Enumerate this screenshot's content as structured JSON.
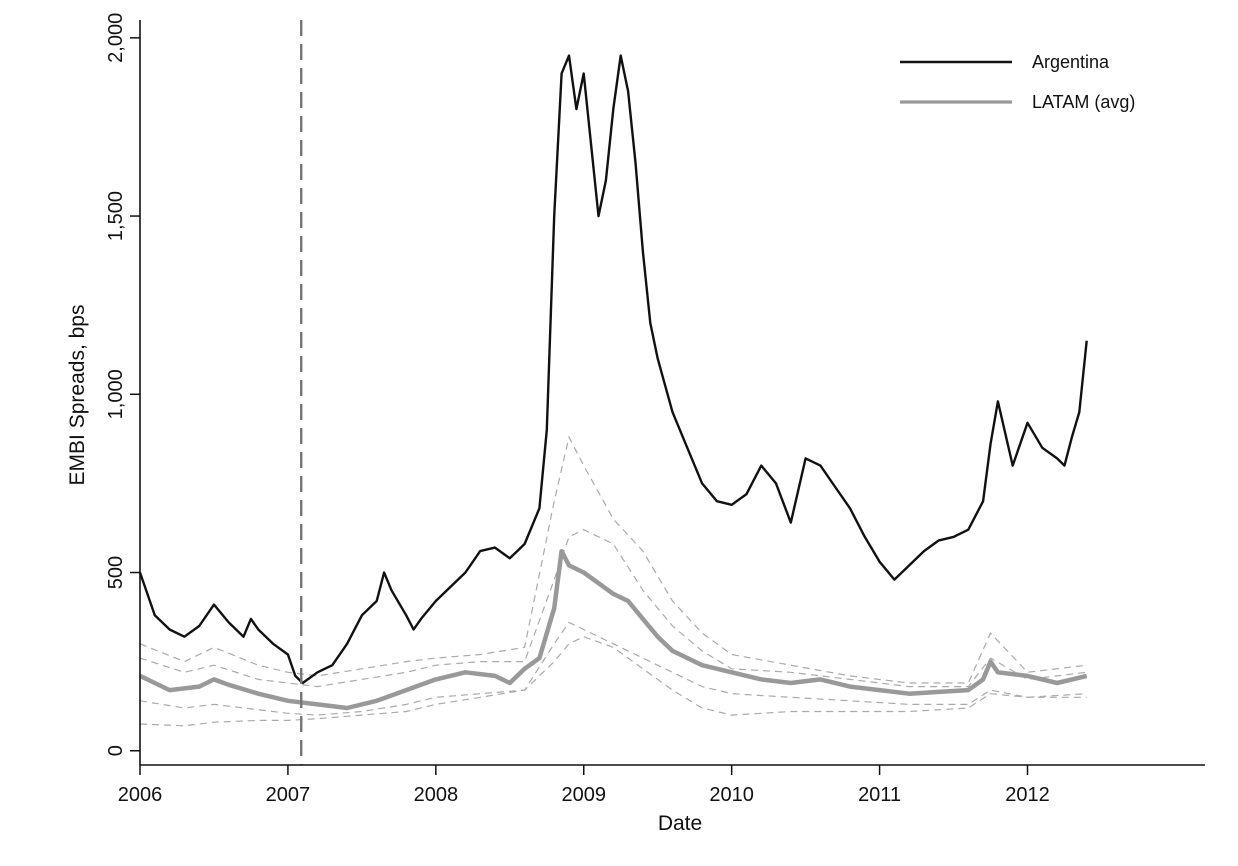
{
  "chart_data": {
    "type": "line",
    "title": "",
    "xlabel": "Date",
    "ylabel": "EMBI Spreads, bps",
    "xlim": [
      2006,
      2013.2
    ],
    "ylim": [
      -40,
      2050
    ],
    "x_ticks": [
      2006,
      2007,
      2008,
      2009,
      2010,
      2011,
      2012
    ],
    "x_tick_labels": [
      "2006",
      "2007",
      "2008",
      "2009",
      "2010",
      "2011",
      "2012"
    ],
    "y_ticks": [
      0,
      500,
      1000,
      1500,
      2000
    ],
    "y_tick_labels": [
      "0",
      "500",
      "1,000",
      "1,500",
      "2,000"
    ],
    "grid": false,
    "legend_position": "top-right",
    "vertical_reference_line": {
      "x": 2007.09,
      "style": "dashed",
      "color": "#777777"
    },
    "series": [
      {
        "name": "Argentina",
        "color": "#111111",
        "x": [
          2006.0,
          2006.05,
          2006.1,
          2006.2,
          2006.3,
          2006.4,
          2006.5,
          2006.6,
          2006.7,
          2006.75,
          2006.8,
          2006.9,
          2007.0,
          2007.05,
          2007.1,
          2007.2,
          2007.3,
          2007.4,
          2007.5,
          2007.6,
          2007.65,
          2007.7,
          2007.8,
          2007.85,
          2007.9,
          2008.0,
          2008.1,
          2008.2,
          2008.3,
          2008.4,
          2008.5,
          2008.6,
          2008.7,
          2008.75,
          2008.8,
          2008.85,
          2008.9,
          2008.95,
          2009.0,
          2009.05,
          2009.1,
          2009.15,
          2009.2,
          2009.25,
          2009.3,
          2009.35,
          2009.4,
          2009.45,
          2009.5,
          2009.6,
          2009.7,
          2009.8,
          2009.9,
          2010.0,
          2010.1,
          2010.2,
          2010.3,
          2010.4,
          2010.5,
          2010.6,
          2010.7,
          2010.8,
          2010.9,
          2011.0,
          2011.1,
          2011.2,
          2011.3,
          2011.4,
          2011.5,
          2011.6,
          2011.7,
          2011.75,
          2011.8,
          2011.9,
          2012.0,
          2012.1,
          2012.2,
          2012.25,
          2012.3,
          2012.35,
          2012.4
        ],
        "y": [
          500,
          440,
          380,
          340,
          320,
          350,
          410,
          360,
          320,
          370,
          340,
          300,
          270,
          210,
          190,
          220,
          240,
          300,
          380,
          420,
          500,
          450,
          380,
          340,
          370,
          420,
          460,
          500,
          560,
          570,
          540,
          580,
          680,
          900,
          1500,
          1900,
          1950,
          1800,
          1900,
          1700,
          1500,
          1600,
          1800,
          1950,
          1850,
          1650,
          1400,
          1200,
          1100,
          950,
          850,
          750,
          700,
          690,
          720,
          800,
          750,
          640,
          820,
          800,
          740,
          680,
          600,
          530,
          480,
          520,
          560,
          590,
          600,
          620,
          700,
          860,
          980,
          800,
          920,
          850,
          820,
          800,
          880,
          950,
          1150
        ]
      },
      {
        "name": "LATAM (avg)",
        "color": "#999999",
        "x": [
          2006.0,
          2006.2,
          2006.4,
          2006.5,
          2006.6,
          2006.8,
          2007.0,
          2007.2,
          2007.4,
          2007.6,
          2007.8,
          2008.0,
          2008.2,
          2008.4,
          2008.5,
          2008.6,
          2008.7,
          2008.8,
          2008.85,
          2008.9,
          2009.0,
          2009.1,
          2009.2,
          2009.3,
          2009.4,
          2009.5,
          2009.6,
          2009.8,
          2010.0,
          2010.2,
          2010.4,
          2010.6,
          2010.8,
          2011.0,
          2011.2,
          2011.4,
          2011.6,
          2011.7,
          2011.75,
          2011.8,
          2012.0,
          2012.2,
          2012.4
        ],
        "y": [
          210,
          170,
          180,
          200,
          185,
          160,
          140,
          130,
          120,
          140,
          170,
          200,
          220,
          210,
          190,
          230,
          260,
          400,
          560,
          520,
          500,
          470,
          440,
          420,
          370,
          320,
          280,
          240,
          220,
          200,
          190,
          200,
          180,
          170,
          160,
          165,
          170,
          200,
          250,
          220,
          210,
          190,
          210
        ]
      }
    ],
    "country_series_dashed": [
      {
        "x": [
          2006.0,
          2006.3,
          2006.5,
          2006.8,
          2007.0,
          2007.2,
          2007.5,
          2007.8,
          2008.0,
          2008.3,
          2008.6,
          2008.8,
          2008.9,
          2009.0,
          2009.2,
          2009.4,
          2009.6,
          2009.8,
          2010.0,
          2010.4,
          2010.8,
          2011.2,
          2011.6,
          2011.75,
          2012.0,
          2012.4
        ],
        "y": [
          300,
          250,
          290,
          240,
          220,
          210,
          230,
          250,
          260,
          270,
          290,
          700,
          880,
          800,
          650,
          560,
          420,
          330,
          270,
          240,
          210,
          190,
          190,
          330,
          220,
          240
        ]
      },
      {
        "x": [
          2006.0,
          2006.3,
          2006.5,
          2006.8,
          2007.0,
          2007.2,
          2007.5,
          2007.8,
          2008.0,
          2008.3,
          2008.6,
          2008.8,
          2008.9,
          2009.0,
          2009.2,
          2009.4,
          2009.6,
          2009.8,
          2010.0,
          2010.4,
          2010.8,
          2011.2,
          2011.6,
          2011.75,
          2012.0,
          2012.4
        ],
        "y": [
          260,
          220,
          240,
          200,
          190,
          180,
          200,
          220,
          240,
          250,
          250,
          480,
          600,
          620,
          580,
          450,
          350,
          280,
          230,
          220,
          200,
          180,
          180,
          260,
          200,
          220
        ]
      },
      {
        "x": [
          2006.0,
          2006.3,
          2006.5,
          2006.8,
          2007.0,
          2007.2,
          2007.5,
          2007.8,
          2008.0,
          2008.3,
          2008.6,
          2008.8,
          2008.9,
          2009.0,
          2009.2,
          2009.4,
          2009.6,
          2009.8,
          2010.0,
          2010.4,
          2010.8,
          2011.2,
          2011.6,
          2011.75,
          2012.0,
          2012.4
        ],
        "y": [
          140,
          120,
          130,
          115,
          105,
          100,
          110,
          130,
          150,
          160,
          170,
          300,
          360,
          340,
          300,
          260,
          220,
          180,
          160,
          150,
          140,
          130,
          130,
          170,
          150,
          160
        ]
      },
      {
        "x": [
          2006.0,
          2006.3,
          2006.5,
          2006.8,
          2007.0,
          2007.2,
          2007.5,
          2007.8,
          2008.0,
          2008.3,
          2008.6,
          2008.8,
          2008.9,
          2009.0,
          2009.2,
          2009.4,
          2009.6,
          2009.8,
          2010.0,
          2010.4,
          2010.8,
          2011.2,
          2011.6,
          2011.75,
          2012.0,
          2012.4
        ],
        "y": [
          75,
          70,
          80,
          85,
          85,
          90,
          100,
          110,
          130,
          150,
          170,
          250,
          300,
          320,
          290,
          230,
          170,
          120,
          100,
          110,
          110,
          110,
          120,
          160,
          150,
          150
        ]
      }
    ]
  }
}
